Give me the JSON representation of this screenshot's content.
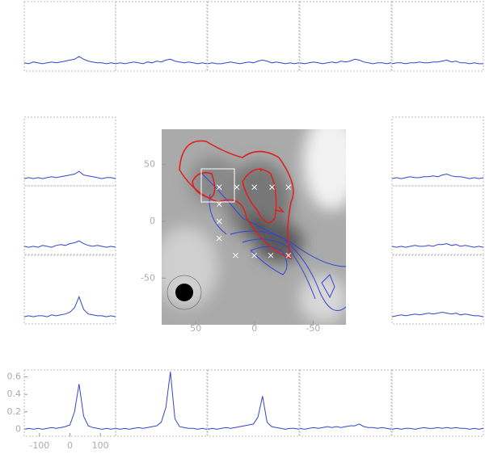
{
  "chart_data": [
    {
      "type": "scatter",
      "color": "#ffffff",
      "x": [
        15,
        0,
        -15,
        -29,
        30,
        30,
        30,
        30,
        16,
        0,
        -14,
        -29
      ],
      "y": [
        30,
        30,
        30,
        30,
        30,
        15,
        0,
        -15,
        -30,
        -30,
        -30,
        -30
      ],
      "xlim": [
        79,
        -78
      ],
      "ylim": [
        -91,
        81
      ],
      "xticks": [
        50,
        0,
        -50
      ],
      "yticks": [
        50,
        0,
        -50
      ]
    },
    {
      "type": "line",
      "x": [
        -150,
        -135,
        -120,
        -105,
        -90,
        -75,
        -60,
        -45,
        -30,
        -15,
        0,
        15,
        30,
        45,
        60,
        75,
        90,
        105,
        120,
        135,
        150
      ],
      "xlim": [
        -150,
        150
      ],
      "ylim": [
        -0.08,
        0.68
      ],
      "xticks": [
        -100,
        0,
        100
      ],
      "yticks": [
        0,
        0.2,
        0.4,
        0.6
      ],
      "series": [
        {
          "color": "#3344cc",
          "values": [
            0.01,
            0,
            0.02,
            0.01,
            0,
            0.01,
            0.02,
            0.01,
            0.02,
            0.03,
            0.04,
            0.05,
            0.08,
            0.05,
            0.03,
            0.02,
            0.01,
            0.01,
            0,
            0.01,
            0
          ]
        },
        {
          "color": "#3344cc",
          "values": [
            0,
            0.01,
            0,
            0.01,
            0.02,
            0.01,
            0,
            0.02,
            0.01,
            0.03,
            0.02,
            0.04,
            0.05,
            0.03,
            0.02,
            0.01,
            0.02,
            0.01,
            0,
            0.01,
            0
          ]
        },
        {
          "color": "#3344cc",
          "values": [
            0,
            0.01,
            0,
            0,
            0.01,
            0.02,
            0.01,
            0,
            0.01,
            0.02,
            0.01,
            0.03,
            0.04,
            0.03,
            0.01,
            0.02,
            0.01,
            0,
            0.01,
            0,
            0.01
          ]
        },
        {
          "color": "#3344cc",
          "values": [
            0.01,
            0,
            0.01,
            0.02,
            0.01,
            0,
            0.01,
            0.02,
            0.01,
            0.03,
            0.02,
            0.03,
            0.05,
            0.04,
            0.02,
            0.01,
            0,
            0.01,
            0.01,
            0,
            0.01
          ]
        },
        {
          "color": "#3344cc",
          "values": [
            0,
            0.01,
            0.01,
            0,
            0.01,
            0.01,
            0.02,
            0.01,
            0.01,
            0.02,
            0.02,
            0.03,
            0.04,
            0.02,
            0.03,
            0.01,
            0.01,
            0,
            0.01,
            0,
            0
          ]
        },
        {
          "color": "#3344cc",
          "values": [
            0,
            0.01,
            0,
            0.01,
            0,
            0.01,
            0.02,
            0.01,
            0.02,
            0.03,
            0.04,
            0.05,
            0.08,
            0.04,
            0.03,
            0.02,
            0.01,
            0,
            0.01,
            0.01,
            0
          ]
        },
        {
          "color": "#3344cc",
          "values": [
            0.01,
            0,
            0.01,
            0,
            0.02,
            0.01,
            0,
            0.02,
            0.03,
            0.02,
            0.04,
            0.05,
            0.07,
            0.04,
            0.02,
            0.01,
            0.02,
            0.01,
            0,
            0.01,
            0
          ]
        },
        {
          "color": "#3344cc",
          "values": [
            0,
            0.01,
            0,
            0.01,
            0.01,
            0,
            0.02,
            0.01,
            0.02,
            0.03,
            0.05,
            0.1,
            0.22,
            0.08,
            0.03,
            0.02,
            0.01,
            0.01,
            0,
            0.01,
            0
          ]
        },
        {
          "color": "#3344cc",
          "values": [
            0,
            0.01,
            0,
            0.01,
            0.02,
            0.01,
            0.01,
            0.02,
            0.02,
            0.03,
            0.02,
            0.04,
            0.05,
            0.03,
            0.02,
            0.02,
            0.01,
            0,
            0.01,
            0,
            0.01
          ]
        },
        {
          "color": "#3344cc",
          "values": [
            0.01,
            0,
            0.01,
            0,
            0.01,
            0.02,
            0.01,
            0.01,
            0.02,
            0.01,
            0.03,
            0.03,
            0.04,
            0.02,
            0.03,
            0.01,
            0.02,
            0.01,
            0,
            0.01,
            0
          ]
        },
        {
          "color": "#3344cc",
          "values": [
            0,
            0.01,
            0.02,
            0.01,
            0.02,
            0.03,
            0.02,
            0.03,
            0.04,
            0.03,
            0.04,
            0.05,
            0.04,
            0.03,
            0.04,
            0.02,
            0.03,
            0.02,
            0.01,
            0.01,
            0
          ]
        },
        {
          "color": "#3344cc",
          "values": [
            0,
            0.01,
            0,
            0.01,
            0,
            0.01,
            0.02,
            0.01,
            0.02,
            0.03,
            0.05,
            0.2,
            0.52,
            0.15,
            0.04,
            0.02,
            0.01,
            0,
            0.01,
            0,
            0.01
          ]
        },
        {
          "color": "#3344cc",
          "values": [
            0.01,
            0,
            0.01,
            0,
            0.01,
            0.02,
            0.01,
            0.02,
            0.03,
            0.04,
            0.08,
            0.25,
            0.66,
            0.12,
            0.03,
            0.02,
            0.01,
            0.01,
            0,
            0.01,
            0
          ]
        },
        {
          "color": "#3344cc",
          "values": [
            0,
            0.01,
            0,
            0.01,
            0.02,
            0.01,
            0.02,
            0.03,
            0.04,
            0.05,
            0.06,
            0.14,
            0.38,
            0.08,
            0.03,
            0.02,
            0.01,
            0,
            0.01,
            0.01,
            0
          ]
        },
        {
          "color": "#3344cc",
          "values": [
            0.01,
            0,
            0.01,
            0.02,
            0.01,
            0.02,
            0.03,
            0.02,
            0.03,
            0.02,
            0.03,
            0.04,
            0.04,
            0.06,
            0.03,
            0.02,
            0.02,
            0.01,
            0.02,
            0.01,
            0
          ]
        },
        {
          "color": "#3344cc",
          "values": [
            0,
            0.01,
            0,
            0.01,
            0.01,
            0,
            0.01,
            0.02,
            0.01,
            0.01,
            0.02,
            0.01,
            0.02,
            0.01,
            0.02,
            0.01,
            0.01,
            0,
            0.01,
            0,
            0.01
          ]
        }
      ]
    }
  ]
}
